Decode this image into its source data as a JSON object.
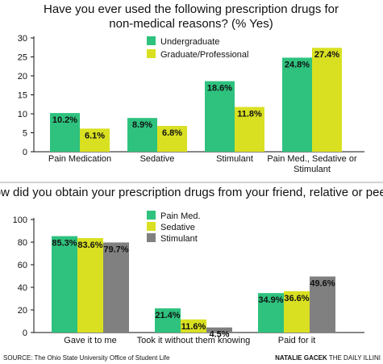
{
  "chart_data": [
    {
      "type": "bar",
      "title": "Have you ever used the following prescription drugs for non-medical reasons? (% Yes)",
      "title_lines": [
        "Have you ever used the following prescription drugs for",
        "non-medical reasons? (% Yes)"
      ],
      "categories": [
        "Pain Medication",
        "Sedative",
        "Stimulant",
        "Pain Med., Sedative or Stimulant"
      ],
      "category_lines": [
        [
          "Pain Medication"
        ],
        [
          "Sedative"
        ],
        [
          "Stimulant"
        ],
        [
          "Pain Med., Sedative or",
          "Stimulant"
        ]
      ],
      "series": [
        {
          "name": "Undergraduate",
          "color": "#2ec27e",
          "values": [
            10.2,
            8.9,
            18.6,
            24.8
          ],
          "labels": [
            "10.2%",
            "8.9%",
            "18.6%",
            "24.8%"
          ]
        },
        {
          "name": "Graduate/Professional",
          "color": "#d9e021",
          "values": [
            6.1,
            6.8,
            11.8,
            27.4
          ],
          "labels": [
            "6.1%",
            "6.8%",
            "11.8%",
            "27.4%"
          ]
        }
      ],
      "ylim": [
        0,
        30
      ],
      "yticks": [
        0,
        5,
        10,
        15,
        20,
        25,
        30
      ],
      "xlabel": "",
      "ylabel": "",
      "legend": "top-center",
      "grid": false
    },
    {
      "type": "bar",
      "title": "How did you obtain your prescription drugs from your friend, relative or peer?",
      "title_lines": [
        "How did you obtain your prescription drugs from your friend, relative or peer?"
      ],
      "categories": [
        "Gave it to me",
        "Took it without them knowing",
        "Paid for it"
      ],
      "category_lines": [
        [
          "Gave it to me"
        ],
        [
          "Took it without them knowing"
        ],
        [
          "Paid for it"
        ]
      ],
      "series": [
        {
          "name": "Pain Med.",
          "color": "#2ec27e",
          "values": [
            85.3,
            21.4,
            34.9
          ],
          "labels": [
            "85.3%",
            "21.4%",
            "34.9%"
          ]
        },
        {
          "name": "Sedative",
          "color": "#d9e021",
          "values": [
            83.6,
            11.6,
            36.6
          ],
          "labels": [
            "83.6%",
            "11.6%",
            "36.6%"
          ]
        },
        {
          "name": "Stimulant",
          "color": "#808080",
          "values": [
            79.7,
            4.5,
            49.6
          ],
          "labels": [
            "79.7%",
            "4.5%",
            "49.6%"
          ]
        }
      ],
      "ylim": [
        0,
        100
      ],
      "yticks": [
        0,
        20,
        40,
        60,
        80,
        100
      ],
      "xlabel": "",
      "ylabel": "",
      "legend": "top-center",
      "grid": false
    }
  ],
  "footer": {
    "source": "SOURCE: The Ohio State University Office of Student Life",
    "credit_name": "NATALIE GACEK",
    "credit_org": "THE DAILY ILLINI"
  }
}
